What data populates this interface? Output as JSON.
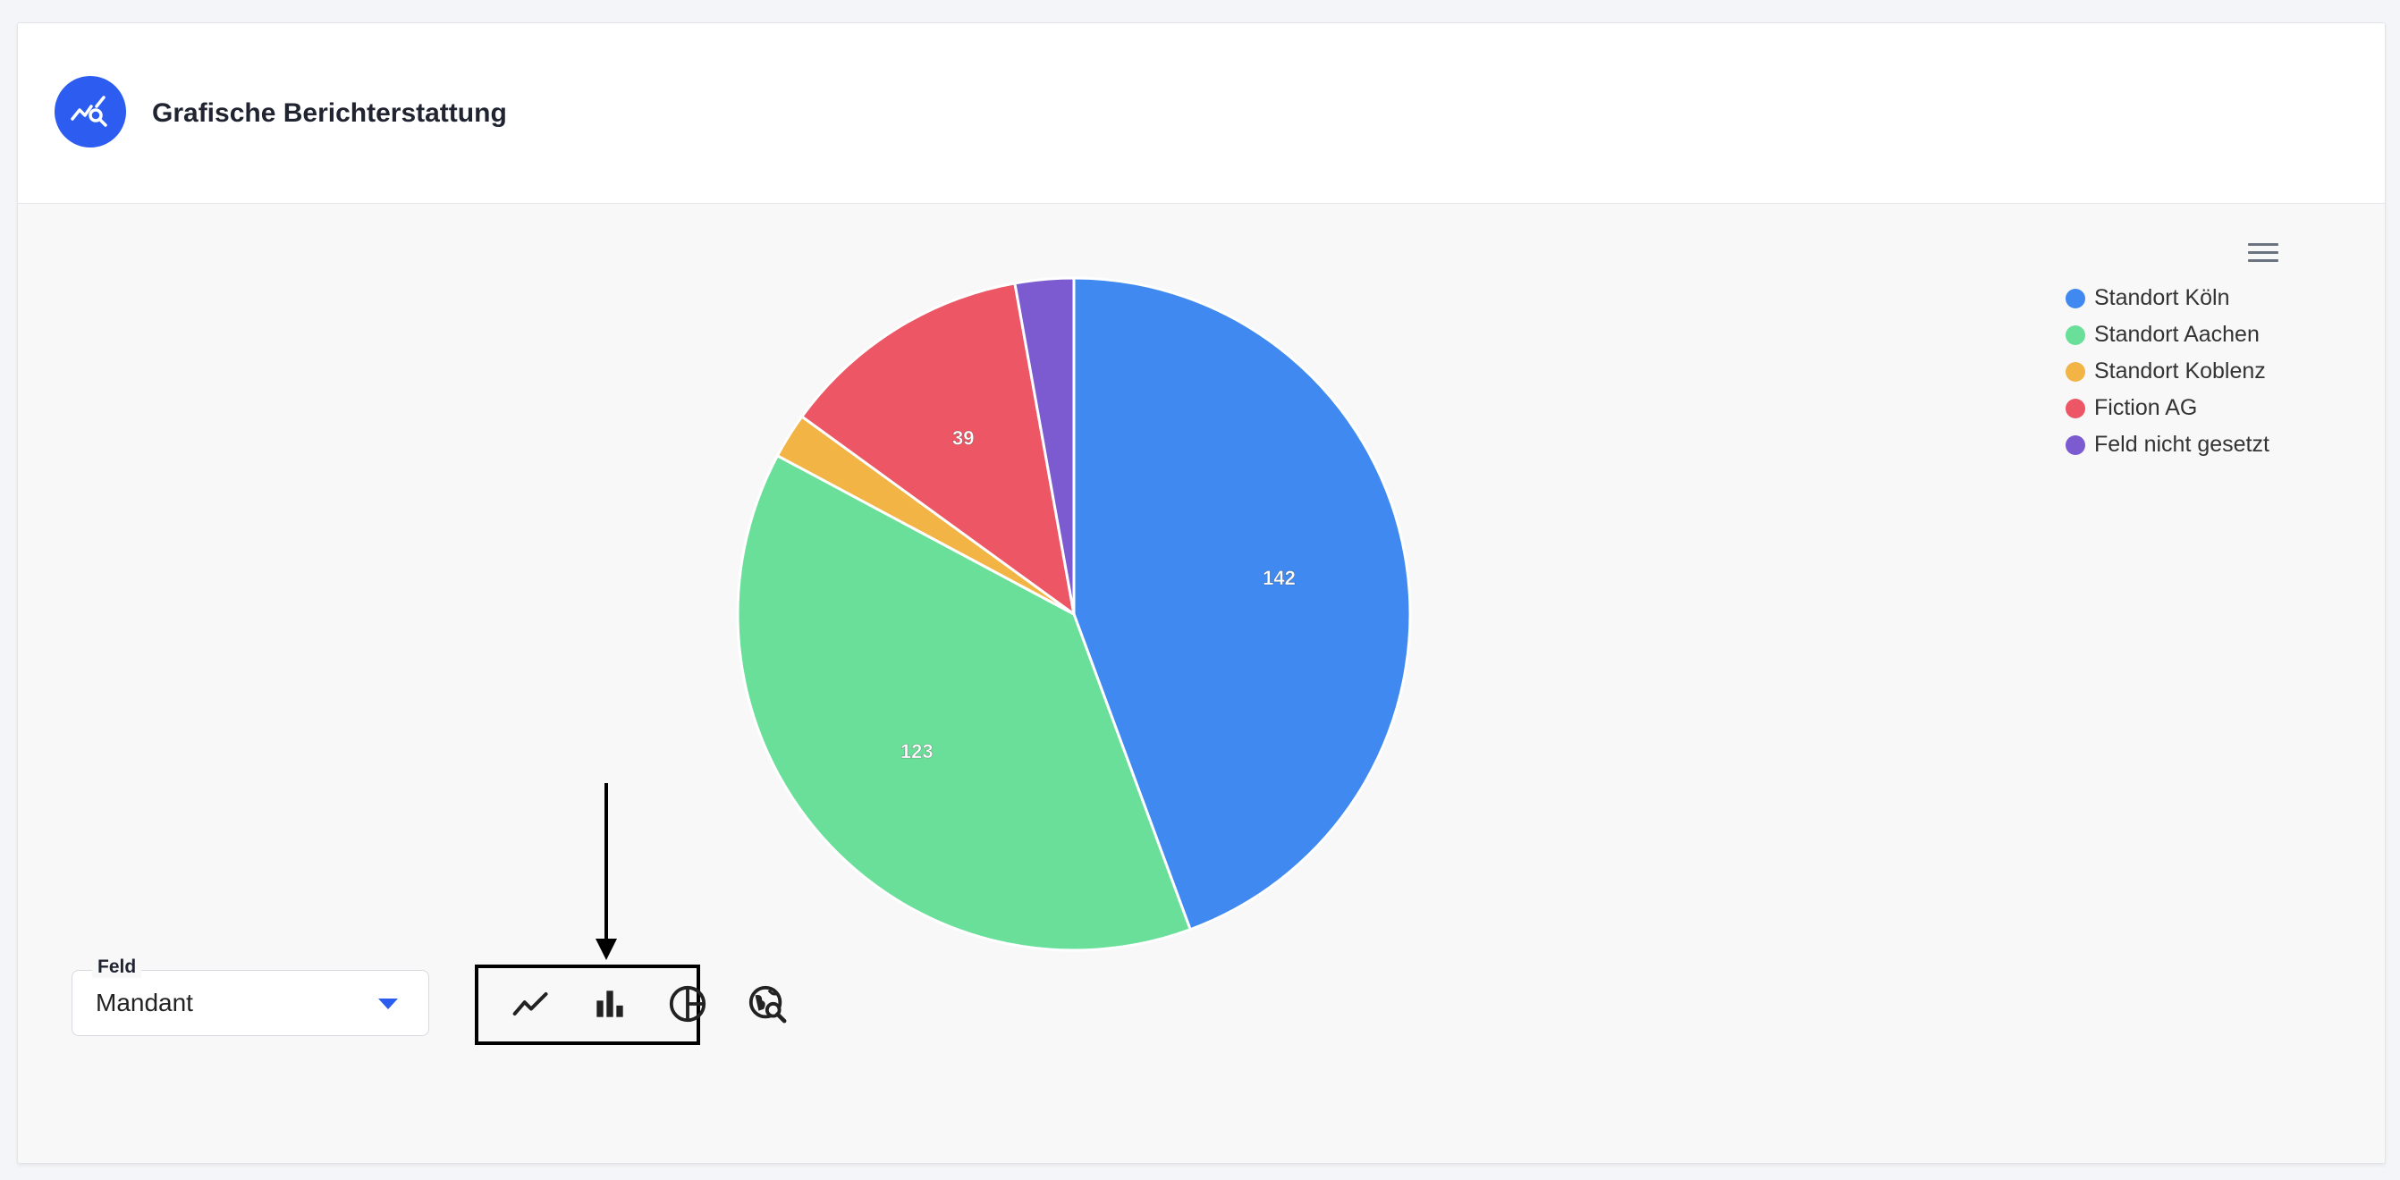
{
  "header": {
    "title": "Grafische Berichterstattung",
    "icon": "chart-search-icon",
    "accent_color": "#2d5cf0"
  },
  "chart_data": {
    "type": "pie",
    "title": "",
    "legend_position": "top-right",
    "slices": [
      {
        "label": "Standort Köln",
        "value": 142,
        "color": "#4089f0",
        "show_label": true
      },
      {
        "label": "Standort Aachen",
        "value": 123,
        "color": "#69df9a",
        "show_label": true
      },
      {
        "label": "Standort Koblenz",
        "value": 7,
        "color": "#f2b445",
        "show_label": false
      },
      {
        "label": "Fiction AG",
        "value": 39,
        "color": "#ec5665",
        "show_label": true
      },
      {
        "label": "Feld nicht gesetzt",
        "value": 9,
        "color": "#7b5bcf",
        "show_label": false
      }
    ]
  },
  "legend": {
    "items": [
      {
        "label": "Standort Köln",
        "color": "#4089f0"
      },
      {
        "label": "Standort Aachen",
        "color": "#69df9a"
      },
      {
        "label": "Standort Koblenz",
        "color": "#f2b445"
      },
      {
        "label": "Fiction AG",
        "color": "#ec5665"
      },
      {
        "label": "Feld nicht gesetzt",
        "color": "#7b5bcf"
      }
    ]
  },
  "field_select": {
    "label": "Feld",
    "value": "Mandant"
  },
  "toolbar": {
    "buttons": [
      {
        "name": "line-chart-button",
        "icon": "line-chart-icon"
      },
      {
        "name": "bar-chart-button",
        "icon": "bar-chart-icon"
      },
      {
        "name": "pie-chart-button",
        "icon": "pie-chart-icon"
      },
      {
        "name": "globe-search-button",
        "icon": "globe-search-icon"
      }
    ]
  }
}
